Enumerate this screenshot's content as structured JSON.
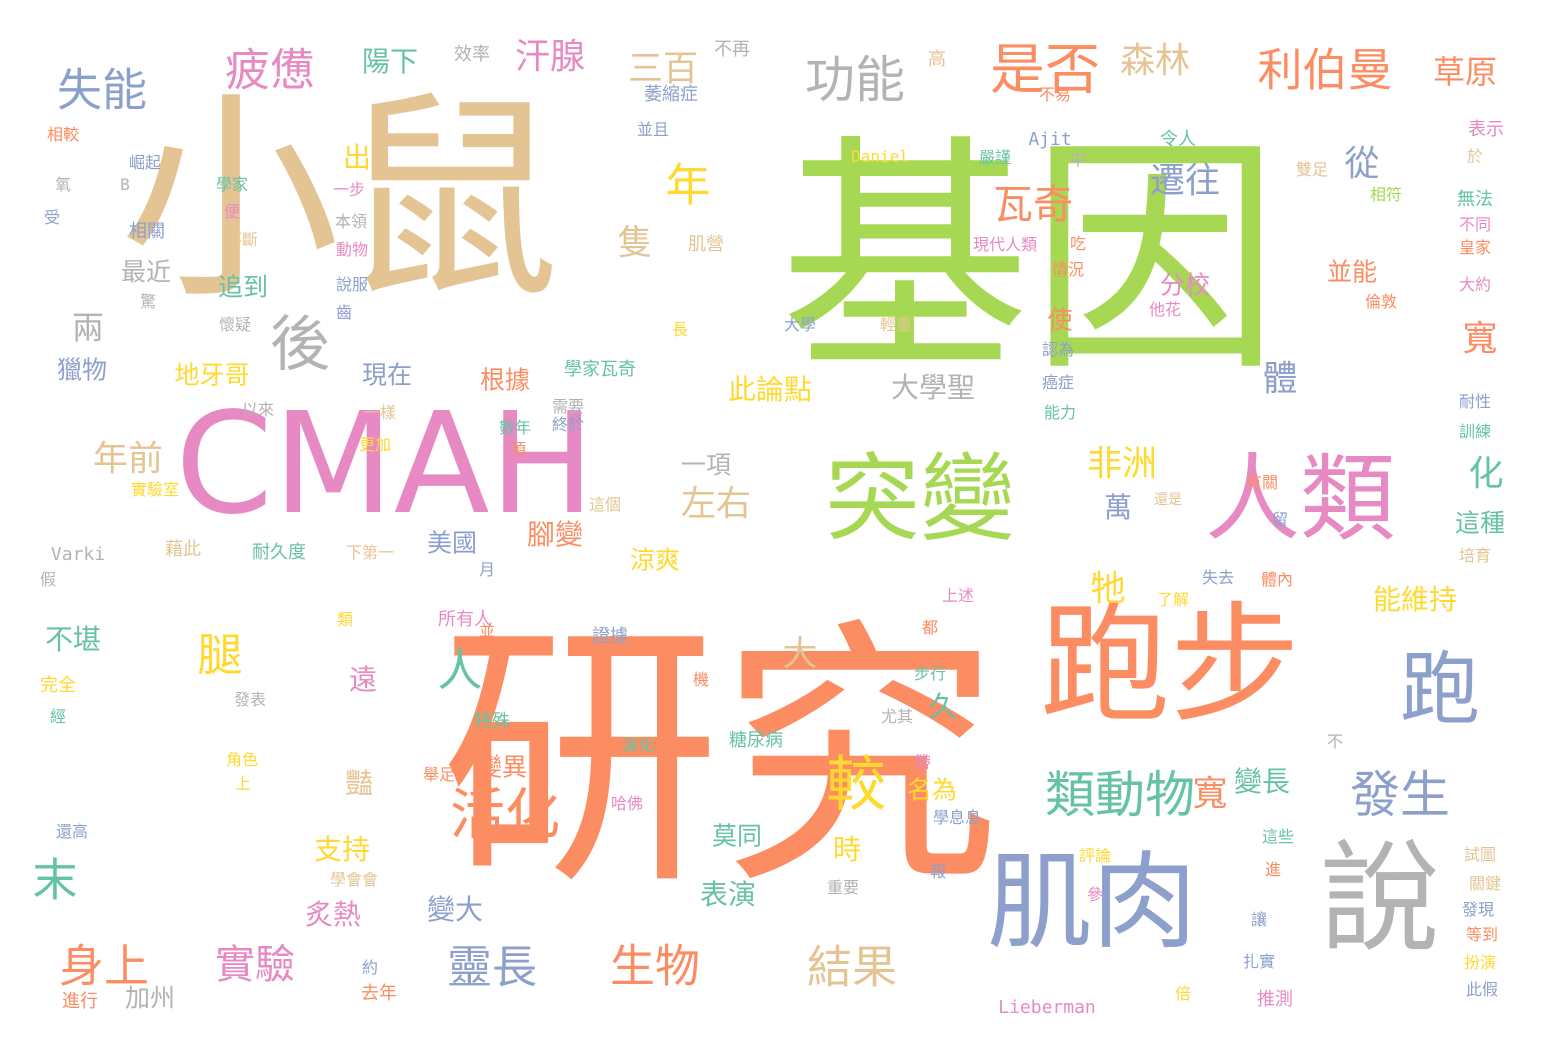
{
  "palette": {
    "green": "#a6d854",
    "orange": "#fc8d62",
    "tan": "#e5c494",
    "pink": "#e78ac3",
    "blue": "#8da0cb",
    "gray": "#b3b3b3",
    "yellow": "#ffd92f",
    "teal": "#66c2a5"
  },
  "words": [
    {
      "text": "基因",
      "color": "green"
    },
    {
      "text": "研究",
      "color": "orange"
    },
    {
      "text": "小鼠",
      "color": "tan"
    },
    {
      "text": "CMAH",
      "color": "pink"
    },
    {
      "text": "跑步",
      "color": "orange"
    },
    {
      "text": "突變",
      "color": "green"
    },
    {
      "text": "人類",
      "color": "pink"
    },
    {
      "text": "肌肉",
      "color": "blue"
    },
    {
      "text": "說",
      "color": "gray"
    },
    {
      "text": "跑",
      "color": "blue"
    },
    {
      "text": "是否",
      "color": "orange"
    },
    {
      "text": "功能",
      "color": "gray"
    },
    {
      "text": "利伯曼",
      "color": "orange"
    },
    {
      "text": "草原",
      "color": "orange"
    },
    {
      "text": "失能",
      "color": "blue"
    },
    {
      "text": "疲憊",
      "color": "pink"
    },
    {
      "text": "陽下",
      "color": "teal"
    },
    {
      "text": "效率",
      "color": "gray"
    },
    {
      "text": "不再",
      "color": "gray"
    },
    {
      "text": "汗腺",
      "color": "pink"
    },
    {
      "text": "三百",
      "color": "tan"
    },
    {
      "text": "森林",
      "color": "tan"
    },
    {
      "text": "高",
      "color": "tan"
    },
    {
      "text": "萎縮症",
      "color": "blue"
    },
    {
      "text": "不易",
      "color": "orange"
    },
    {
      "text": "並且",
      "color": "blue"
    },
    {
      "text": "Ajit",
      "color": "blue"
    },
    {
      "text": "表示",
      "color": "pink"
    },
    {
      "text": "相較",
      "color": "orange"
    },
    {
      "text": "崛起",
      "color": "blue"
    },
    {
      "text": "氧",
      "color": "gray"
    },
    {
      "text": "B",
      "color": "gray"
    },
    {
      "text": "受",
      "color": "blue"
    },
    {
      "text": "學家",
      "color": "teal"
    },
    {
      "text": "便",
      "color": "pink"
    },
    {
      "text": "相關",
      "color": "blue"
    },
    {
      "text": "不斷",
      "color": "tan"
    },
    {
      "text": "出",
      "color": "yellow"
    },
    {
      "text": "一步",
      "color": "pink"
    },
    {
      "text": "本領",
      "color": "gray"
    },
    {
      "text": "動物",
      "color": "pink"
    },
    {
      "text": "後",
      "color": "gray"
    },
    {
      "text": "年",
      "color": "yellow"
    },
    {
      "text": "瓦奇",
      "color": "orange"
    },
    {
      "text": "遷往",
      "color": "blue"
    },
    {
      "text": "從",
      "color": "blue"
    },
    {
      "text": "令人",
      "color": "teal"
    },
    {
      "text": "雙足",
      "color": "tan"
    },
    {
      "text": "相符",
      "color": "green"
    },
    {
      "text": "於",
      "color": "tan"
    },
    {
      "text": "無法",
      "color": "teal"
    },
    {
      "text": "不同",
      "color": "pink"
    },
    {
      "text": "皇家",
      "color": "orange"
    },
    {
      "text": "大約",
      "color": "pink"
    },
    {
      "text": "最近",
      "color": "gray"
    },
    {
      "text": "驚",
      "color": "gray"
    },
    {
      "text": "懷疑",
      "color": "gray"
    },
    {
      "text": "追到",
      "color": "teal"
    },
    {
      "text": "說服",
      "color": "blue"
    },
    {
      "text": "齒",
      "color": "blue"
    },
    {
      "text": "隻",
      "color": "tan"
    },
    {
      "text": "肌營",
      "color": "tan"
    },
    {
      "text": "嚴謹",
      "color": "teal"
    },
    {
      "text": "中",
      "color": "gray"
    },
    {
      "text": "Daniel",
      "color": "yellow"
    },
    {
      "text": "現代人類",
      "color": "pink"
    },
    {
      "text": "吃",
      "color": "orange"
    },
    {
      "text": "情況",
      "color": "orange"
    },
    {
      "text": "分校",
      "color": "pink"
    },
    {
      "text": "並能",
      "color": "orange"
    },
    {
      "text": "他花",
      "color": "pink"
    },
    {
      "text": "倫敦",
      "color": "orange"
    },
    {
      "text": "兩",
      "color": "gray"
    },
    {
      "text": "獵物",
      "color": "blue"
    },
    {
      "text": "地牙哥",
      "color": "yellow"
    },
    {
      "text": "長",
      "color": "yellow"
    },
    {
      "text": "大學",
      "color": "blue"
    },
    {
      "text": "輕重",
      "color": "tan"
    },
    {
      "text": "使",
      "color": "orange"
    },
    {
      "text": "認為",
      "color": "blue"
    },
    {
      "text": "寬",
      "color": "orange"
    },
    {
      "text": "體",
      "color": "blue"
    },
    {
      "text": "癌症",
      "color": "blue"
    },
    {
      "text": "能力",
      "color": "teal"
    },
    {
      "text": "耐性",
      "color": "blue"
    },
    {
      "text": "訓練",
      "color": "teal"
    },
    {
      "text": "現在",
      "color": "blue"
    },
    {
      "text": "以來",
      "color": "gray"
    },
    {
      "text": "一樣",
      "color": "tan"
    },
    {
      "text": "根據",
      "color": "orange"
    },
    {
      "text": "學家瓦奇",
      "color": "teal"
    },
    {
      "text": "需要",
      "color": "gray"
    },
    {
      "text": "此論點",
      "color": "yellow"
    },
    {
      "text": "大學聖",
      "color": "gray"
    },
    {
      "text": "更加",
      "color": "yellow"
    },
    {
      "text": "數年",
      "color": "teal"
    },
    {
      "text": "終於",
      "color": "blue"
    },
    {
      "text": "年前",
      "color": "tan"
    },
    {
      "text": "項",
      "color": "orange"
    },
    {
      "text": "一項",
      "color": "gray"
    },
    {
      "text": "左右",
      "color": "tan"
    },
    {
      "text": "非洲",
      "color": "yellow"
    },
    {
      "text": "化",
      "color": "teal"
    },
    {
      "text": "有關",
      "color": "orange"
    },
    {
      "text": "這種",
      "color": "teal"
    },
    {
      "text": "實驗室",
      "color": "yellow"
    },
    {
      "text": "這個",
      "color": "tan"
    },
    {
      "text": "萬",
      "color": "blue"
    },
    {
      "text": "還是",
      "color": "tan"
    },
    {
      "text": "留",
      "color": "blue"
    },
    {
      "text": "培育",
      "color": "tan"
    },
    {
      "text": "Varki",
      "color": "gray"
    },
    {
      "text": "藉此",
      "color": "tan"
    },
    {
      "text": "耐久度",
      "color": "teal"
    },
    {
      "text": "下第一",
      "color": "tan"
    },
    {
      "text": "美國",
      "color": "blue"
    },
    {
      "text": "腳變",
      "color": "orange"
    },
    {
      "text": "涼爽",
      "color": "yellow"
    },
    {
      "text": "假",
      "color": "gray"
    },
    {
      "text": "月",
      "color": "blue"
    },
    {
      "text": "牠",
      "color": "yellow"
    },
    {
      "text": "體內",
      "color": "orange"
    },
    {
      "text": "失去",
      "color": "blue"
    },
    {
      "text": "能維持",
      "color": "yellow"
    },
    {
      "text": "上述",
      "color": "pink"
    },
    {
      "text": "了解",
      "color": "yellow"
    },
    {
      "text": "類",
      "color": "yellow"
    },
    {
      "text": "所有人",
      "color": "pink"
    },
    {
      "text": "證據",
      "color": "blue"
    },
    {
      "text": "都",
      "color": "orange"
    },
    {
      "text": "不堪",
      "color": "teal"
    },
    {
      "text": "腿",
      "color": "yellow"
    },
    {
      "text": "人",
      "color": "teal"
    },
    {
      "text": "大",
      "color": "tan"
    },
    {
      "text": "並未",
      "color": "orange"
    },
    {
      "text": "步行",
      "color": "teal"
    },
    {
      "text": "遠",
      "color": "pink"
    },
    {
      "text": "完全",
      "color": "yellow"
    },
    {
      "text": "發表",
      "color": "gray"
    },
    {
      "text": "機",
      "color": "orange"
    },
    {
      "text": "經",
      "color": "teal"
    },
    {
      "text": "特殊",
      "color": "teal"
    },
    {
      "text": "久",
      "color": "teal"
    },
    {
      "text": "尤其",
      "color": "gray"
    },
    {
      "text": "活化",
      "color": "orange"
    },
    {
      "text": "類動物",
      "color": "teal"
    },
    {
      "text": "發生",
      "color": "blue"
    },
    {
      "text": "較",
      "color": "yellow"
    },
    {
      "text": "演化",
      "color": "teal"
    },
    {
      "text": "糖尿病",
      "color": "teal"
    },
    {
      "text": "變異",
      "color": "orange"
    },
    {
      "text": "帶",
      "color": "pink"
    },
    {
      "text": "不",
      "color": "gray"
    },
    {
      "text": "角色",
      "color": "yellow"
    },
    {
      "text": "上",
      "color": "yellow"
    },
    {
      "text": "舉足",
      "color": "orange"
    },
    {
      "text": "變長",
      "color": "teal"
    },
    {
      "text": "名為",
      "color": "yellow"
    },
    {
      "text": "寬",
      "color": "orange"
    },
    {
      "text": "還高",
      "color": "blue"
    },
    {
      "text": "哈佛",
      "color": "pink"
    },
    {
      "text": "學息息",
      "color": "blue"
    },
    {
      "text": "這些",
      "color": "teal"
    },
    {
      "text": "末",
      "color": "teal"
    },
    {
      "text": "豔",
      "color": "tan"
    },
    {
      "text": "支持",
      "color": "yellow"
    },
    {
      "text": "莫同",
      "color": "teal"
    },
    {
      "text": "時",
      "color": "yellow"
    },
    {
      "text": "評論",
      "color": "yellow"
    },
    {
      "text": "試圖",
      "color": "tan"
    },
    {
      "text": "關鍵",
      "color": "tan"
    },
    {
      "text": "學會會",
      "color": "tan"
    },
    {
      "text": "重要",
      "color": "gray"
    },
    {
      "text": "報",
      "color": "blue"
    },
    {
      "text": "進",
      "color": "orange"
    },
    {
      "text": "參",
      "color": "pink"
    },
    {
      "text": "炙熱",
      "color": "pink"
    },
    {
      "text": "表演",
      "color": "teal"
    },
    {
      "text": "身上",
      "color": "orange"
    },
    {
      "text": "變大",
      "color": "blue"
    },
    {
      "text": "發現",
      "color": "blue"
    },
    {
      "text": "讓",
      "color": "blue"
    },
    {
      "text": "等到",
      "color": "orange"
    },
    {
      "text": "實驗",
      "color": "pink"
    },
    {
      "text": "靈長",
      "color": "blue"
    },
    {
      "text": "生物",
      "color": "orange"
    },
    {
      "text": "結果",
      "color": "tan"
    },
    {
      "text": "約",
      "color": "blue"
    },
    {
      "text": "扎實",
      "color": "blue"
    },
    {
      "text": "扮演",
      "color": "yellow"
    },
    {
      "text": "加州",
      "color": "gray"
    },
    {
      "text": "進行",
      "color": "orange"
    },
    {
      "text": "去年",
      "color": "orange"
    },
    {
      "text": "Lieberman",
      "color": "pink"
    },
    {
      "text": "倍",
      "color": "yellow"
    },
    {
      "text": "推測",
      "color": "pink"
    },
    {
      "text": "此假",
      "color": "blue"
    }
  ]
}
